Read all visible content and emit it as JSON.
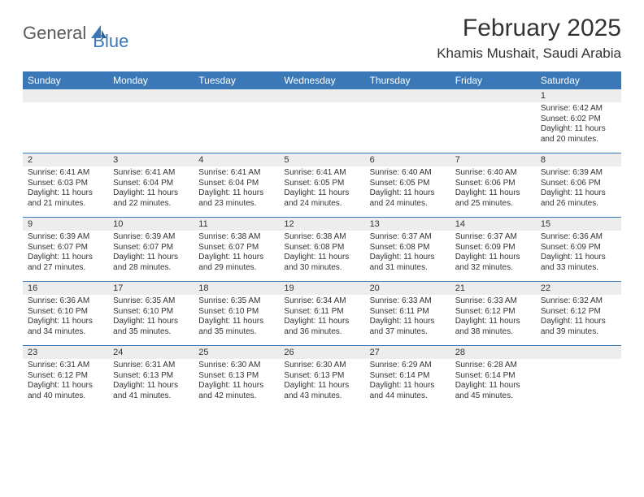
{
  "logo": {
    "part1": "General",
    "part2": "Blue"
  },
  "title": "February 2025",
  "location": "Khamis Mushait, Saudi Arabia",
  "colors": {
    "header_bg": "#3a78b8",
    "header_text": "#ffffff",
    "daynum_bg": "#ededed",
    "text": "#333333",
    "rule": "#3a78b8"
  },
  "day_names": [
    "Sunday",
    "Monday",
    "Tuesday",
    "Wednesday",
    "Thursday",
    "Friday",
    "Saturday"
  ],
  "weeks": [
    [
      {
        "n": "",
        "sr": "",
        "ss": "",
        "dl": ""
      },
      {
        "n": "",
        "sr": "",
        "ss": "",
        "dl": ""
      },
      {
        "n": "",
        "sr": "",
        "ss": "",
        "dl": ""
      },
      {
        "n": "",
        "sr": "",
        "ss": "",
        "dl": ""
      },
      {
        "n": "",
        "sr": "",
        "ss": "",
        "dl": ""
      },
      {
        "n": "",
        "sr": "",
        "ss": "",
        "dl": ""
      },
      {
        "n": "1",
        "sr": "Sunrise: 6:42 AM",
        "ss": "Sunset: 6:02 PM",
        "dl": "Daylight: 11 hours and 20 minutes."
      }
    ],
    [
      {
        "n": "2",
        "sr": "Sunrise: 6:41 AM",
        "ss": "Sunset: 6:03 PM",
        "dl": "Daylight: 11 hours and 21 minutes."
      },
      {
        "n": "3",
        "sr": "Sunrise: 6:41 AM",
        "ss": "Sunset: 6:04 PM",
        "dl": "Daylight: 11 hours and 22 minutes."
      },
      {
        "n": "4",
        "sr": "Sunrise: 6:41 AM",
        "ss": "Sunset: 6:04 PM",
        "dl": "Daylight: 11 hours and 23 minutes."
      },
      {
        "n": "5",
        "sr": "Sunrise: 6:41 AM",
        "ss": "Sunset: 6:05 PM",
        "dl": "Daylight: 11 hours and 24 minutes."
      },
      {
        "n": "6",
        "sr": "Sunrise: 6:40 AM",
        "ss": "Sunset: 6:05 PM",
        "dl": "Daylight: 11 hours and 24 minutes."
      },
      {
        "n": "7",
        "sr": "Sunrise: 6:40 AM",
        "ss": "Sunset: 6:06 PM",
        "dl": "Daylight: 11 hours and 25 minutes."
      },
      {
        "n": "8",
        "sr": "Sunrise: 6:39 AM",
        "ss": "Sunset: 6:06 PM",
        "dl": "Daylight: 11 hours and 26 minutes."
      }
    ],
    [
      {
        "n": "9",
        "sr": "Sunrise: 6:39 AM",
        "ss": "Sunset: 6:07 PM",
        "dl": "Daylight: 11 hours and 27 minutes."
      },
      {
        "n": "10",
        "sr": "Sunrise: 6:39 AM",
        "ss": "Sunset: 6:07 PM",
        "dl": "Daylight: 11 hours and 28 minutes."
      },
      {
        "n": "11",
        "sr": "Sunrise: 6:38 AM",
        "ss": "Sunset: 6:07 PM",
        "dl": "Daylight: 11 hours and 29 minutes."
      },
      {
        "n": "12",
        "sr": "Sunrise: 6:38 AM",
        "ss": "Sunset: 6:08 PM",
        "dl": "Daylight: 11 hours and 30 minutes."
      },
      {
        "n": "13",
        "sr": "Sunrise: 6:37 AM",
        "ss": "Sunset: 6:08 PM",
        "dl": "Daylight: 11 hours and 31 minutes."
      },
      {
        "n": "14",
        "sr": "Sunrise: 6:37 AM",
        "ss": "Sunset: 6:09 PM",
        "dl": "Daylight: 11 hours and 32 minutes."
      },
      {
        "n": "15",
        "sr": "Sunrise: 6:36 AM",
        "ss": "Sunset: 6:09 PM",
        "dl": "Daylight: 11 hours and 33 minutes."
      }
    ],
    [
      {
        "n": "16",
        "sr": "Sunrise: 6:36 AM",
        "ss": "Sunset: 6:10 PM",
        "dl": "Daylight: 11 hours and 34 minutes."
      },
      {
        "n": "17",
        "sr": "Sunrise: 6:35 AM",
        "ss": "Sunset: 6:10 PM",
        "dl": "Daylight: 11 hours and 35 minutes."
      },
      {
        "n": "18",
        "sr": "Sunrise: 6:35 AM",
        "ss": "Sunset: 6:10 PM",
        "dl": "Daylight: 11 hours and 35 minutes."
      },
      {
        "n": "19",
        "sr": "Sunrise: 6:34 AM",
        "ss": "Sunset: 6:11 PM",
        "dl": "Daylight: 11 hours and 36 minutes."
      },
      {
        "n": "20",
        "sr": "Sunrise: 6:33 AM",
        "ss": "Sunset: 6:11 PM",
        "dl": "Daylight: 11 hours and 37 minutes."
      },
      {
        "n": "21",
        "sr": "Sunrise: 6:33 AM",
        "ss": "Sunset: 6:12 PM",
        "dl": "Daylight: 11 hours and 38 minutes."
      },
      {
        "n": "22",
        "sr": "Sunrise: 6:32 AM",
        "ss": "Sunset: 6:12 PM",
        "dl": "Daylight: 11 hours and 39 minutes."
      }
    ],
    [
      {
        "n": "23",
        "sr": "Sunrise: 6:31 AM",
        "ss": "Sunset: 6:12 PM",
        "dl": "Daylight: 11 hours and 40 minutes."
      },
      {
        "n": "24",
        "sr": "Sunrise: 6:31 AM",
        "ss": "Sunset: 6:13 PM",
        "dl": "Daylight: 11 hours and 41 minutes."
      },
      {
        "n": "25",
        "sr": "Sunrise: 6:30 AM",
        "ss": "Sunset: 6:13 PM",
        "dl": "Daylight: 11 hours and 42 minutes."
      },
      {
        "n": "26",
        "sr": "Sunrise: 6:30 AM",
        "ss": "Sunset: 6:13 PM",
        "dl": "Daylight: 11 hours and 43 minutes."
      },
      {
        "n": "27",
        "sr": "Sunrise: 6:29 AM",
        "ss": "Sunset: 6:14 PM",
        "dl": "Daylight: 11 hours and 44 minutes."
      },
      {
        "n": "28",
        "sr": "Sunrise: 6:28 AM",
        "ss": "Sunset: 6:14 PM",
        "dl": "Daylight: 11 hours and 45 minutes."
      },
      {
        "n": "",
        "sr": "",
        "ss": "",
        "dl": ""
      }
    ]
  ]
}
